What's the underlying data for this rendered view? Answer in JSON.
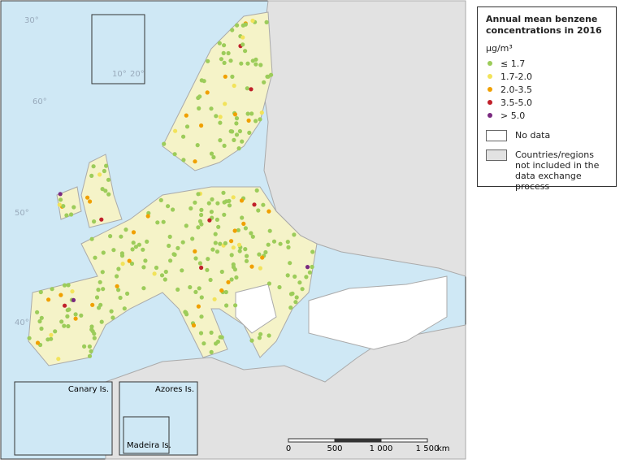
{
  "legend": {
    "title": "Annual mean benzene concentrations in 2016",
    "unit": "µg/m³",
    "classes": [
      {
        "label": "≤ 1.7",
        "color": "#9ccc5a"
      },
      {
        "label": "1.7-2.0",
        "color": "#f2e35a"
      },
      {
        "label": "2.0-3.5",
        "color": "#f0a000"
      },
      {
        "label": "3.5-5.0",
        "color": "#c0202a"
      },
      {
        "label": "> 5.0",
        "color": "#7a2a80"
      }
    ],
    "no_data": "No data",
    "not_included": "Countries/regions not included in the data exchange process"
  },
  "insets": [
    "Canary Is.",
    "Azores Is.",
    "Madeira Is."
  ],
  "scale_bar": {
    "ticks": [
      "0",
      "500",
      "1 000",
      "1 500"
    ],
    "unit": "km"
  },
  "graticule": [
    "30°",
    "60°",
    "50°",
    "40°",
    "10°",
    "20°"
  ]
}
